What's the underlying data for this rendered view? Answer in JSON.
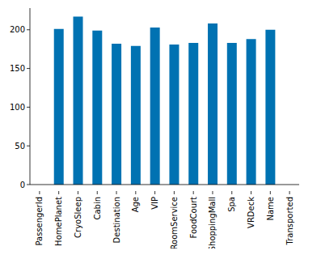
{
  "chart_data": {
    "type": "bar",
    "categories": [
      "PassengerId",
      "HomePlanet",
      "CryoSleep",
      "Cabin",
      "Destination",
      "Age",
      "VIP",
      "RoomService",
      "FoodCourt",
      "ShoppingMall",
      "Spa",
      "VRDeck",
      "Name",
      "Transported"
    ],
    "values": [
      0,
      201,
      217,
      199,
      182,
      179,
      203,
      181,
      183,
      208,
      183,
      188,
      200,
      0
    ],
    "color": "#0072b2",
    "ylim": [
      0,
      228
    ],
    "yticks": [
      0,
      50,
      100,
      150,
      200
    ],
    "grid": false
  }
}
